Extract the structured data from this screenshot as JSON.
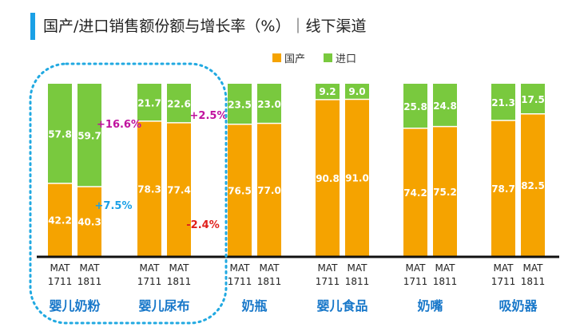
{
  "title": "国产/进口销售额份额与增长率（%）｜线下渠道",
  "colors": {
    "domestic": "#f5a300",
    "import": "#79c93e",
    "growth_pos": "#c0129e",
    "growth_neg": "#e0201b",
    "growth_import": "#1aa0e6",
    "highlight": "#21a9e1",
    "category": "#1777c9"
  },
  "chart_data": {
    "type": "bar",
    "stacked": true,
    "title": "国产/进口销售额份额与增长率（%）｜线下渠道",
    "legend": [
      {
        "name": "国产"
      },
      {
        "name": "进口"
      }
    ],
    "legend_position": "top-right",
    "ylim": [
      0,
      100
    ],
    "groups": [
      {
        "category": "婴儿奶粉",
        "bars": [
          {
            "period": "MAT\n1711",
            "domestic": 42.2,
            "import": 57.8
          },
          {
            "period": "MAT\n1811",
            "domestic": 40.3,
            "import": 59.7
          }
        ]
      },
      {
        "category": "婴儿尿布",
        "bars": [
          {
            "period": "MAT\n1711",
            "domestic": 78.3,
            "import": 21.7
          },
          {
            "period": "MAT\n1811",
            "domestic": 77.4,
            "import": 22.6
          }
        ]
      },
      {
        "category": "奶瓶",
        "bars": [
          {
            "period": "MAT\n1711",
            "domestic": 76.5,
            "import": 23.5
          },
          {
            "period": "MAT\n1811",
            "domestic": 77.0,
            "import": 23.0
          }
        ]
      },
      {
        "category": "婴儿食品",
        "bars": [
          {
            "period": "MAT\n1711",
            "domestic": 90.8,
            "import": 9.2
          },
          {
            "period": "MAT\n1811",
            "domestic": 91.0,
            "import": 9.0
          }
        ]
      },
      {
        "category": "奶嘴",
        "bars": [
          {
            "period": "MAT\n1711",
            "domestic": 74.2,
            "import": 25.8
          },
          {
            "period": "MAT\n1811",
            "domestic": 75.2,
            "import": 24.8
          }
        ]
      },
      {
        "category": "吸奶器",
        "bars": [
          {
            "period": "MAT\n1711",
            "domestic": 78.7,
            "import": 21.3
          },
          {
            "period": "MAT\n1811",
            "domestic": 82.5,
            "import": 17.5
          }
        ]
      }
    ],
    "growth_annotations": [
      {
        "group": "婴儿奶粉",
        "series": "进口",
        "text": "+16.6%",
        "tone": "growth_pos"
      },
      {
        "group": "婴儿奶粉",
        "series": "国产",
        "text": "+7.5%",
        "tone": "growth_import"
      },
      {
        "group": "婴儿尿布",
        "series": "进口",
        "text": "+2.5%",
        "tone": "growth_pos"
      },
      {
        "group": "婴儿尿布",
        "series": "国产",
        "text": "-2.4%",
        "tone": "growth_neg"
      }
    ],
    "highlight": {
      "groups": [
        "婴儿奶粉",
        "婴儿尿布"
      ],
      "style": "dotted-rounded-box"
    }
  }
}
